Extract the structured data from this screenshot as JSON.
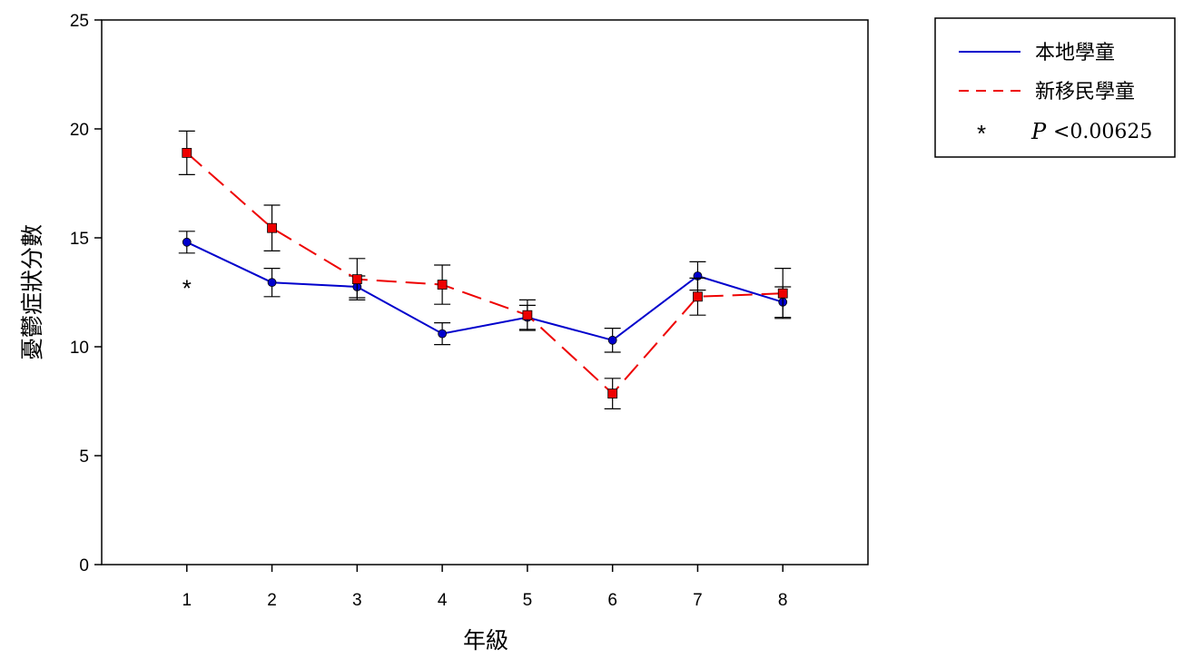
{
  "chart_data": {
    "type": "line",
    "xlabel": "年級",
    "ylabel": "憂鬱症狀分數",
    "x": [
      1,
      2,
      3,
      4,
      5,
      6,
      7,
      8
    ],
    "x_tick_labels": [
      "1",
      "2",
      "3",
      "4",
      "5",
      "6",
      "7",
      "8"
    ],
    "xlim": [
      0,
      9
    ],
    "ylim": [
      0,
      25
    ],
    "y_ticks": [
      0,
      5,
      10,
      15,
      20,
      25
    ],
    "y_tick_labels": [
      "0",
      "5",
      "10",
      "15",
      "20",
      "25"
    ],
    "grid": false,
    "legend_position": "top-right, outside plot",
    "series": [
      {
        "name": "本地學童",
        "color": "#0000cc",
        "line_style": "solid",
        "marker": "circle",
        "values": [
          14.8,
          12.95,
          12.75,
          10.6,
          11.35,
          10.3,
          13.25,
          12.05
        ],
        "error": [
          0.5,
          0.65,
          0.5,
          0.5,
          0.55,
          0.55,
          0.65,
          0.7
        ]
      },
      {
        "name": "新移民學童",
        "color": "#ee0000",
        "line_style": "dashed",
        "marker": "square",
        "values": [
          18.9,
          15.45,
          13.1,
          12.85,
          11.45,
          7.85,
          12.3,
          12.45
        ],
        "error": [
          1.0,
          1.05,
          0.95,
          0.9,
          0.7,
          0.7,
          0.85,
          1.15
        ]
      }
    ],
    "annotations": [
      {
        "text": "*",
        "x": 1,
        "y": 12.9
      }
    ],
    "legend": {
      "series_labels": [
        "本地學童",
        "新移民學童"
      ],
      "significance_symbol": "*",
      "significance_label": "P",
      "significance_value": "<0.00625"
    }
  }
}
